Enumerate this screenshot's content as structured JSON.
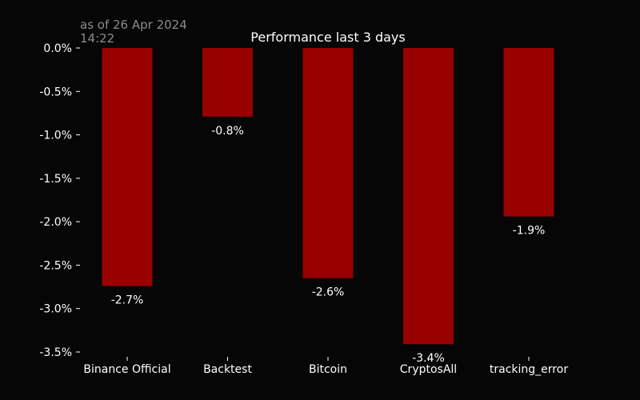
{
  "chart_data": {
    "type": "bar",
    "title": "Performance last 3 days",
    "subtitle": "as of 26 Apr 2024 14:22",
    "subtitle_lines": [
      "as of 26 Apr 2024",
      "14:22"
    ],
    "categories": [
      "Binance Official",
      "Backtest",
      "Bitcoin",
      "CryptosAll",
      "tracking_error"
    ],
    "values": [
      -2.74,
      -0.79,
      -2.65,
      -3.41,
      -1.94
    ],
    "data_labels": [
      "-2.7%",
      "-0.8%",
      "-2.6%",
      "-3.4%",
      "-1.9%"
    ],
    "yticks": [
      0.0,
      -0.5,
      -1.0,
      -1.5,
      -2.0,
      -2.5,
      -3.0,
      -3.5
    ],
    "ytick_labels": [
      "0.0%",
      "-0.5%",
      "-1.0%",
      "-1.5%",
      "-2.0%",
      "-2.5%",
      "-3.0%",
      "-3.5%"
    ],
    "ylim": [
      -3.5,
      0.0
    ],
    "xlabel": "",
    "ylabel": "",
    "grid": false,
    "colors": {
      "background": "#060606",
      "bar": "#990000",
      "text": "#ffffff",
      "subtitle": "#8c8c8c"
    }
  }
}
